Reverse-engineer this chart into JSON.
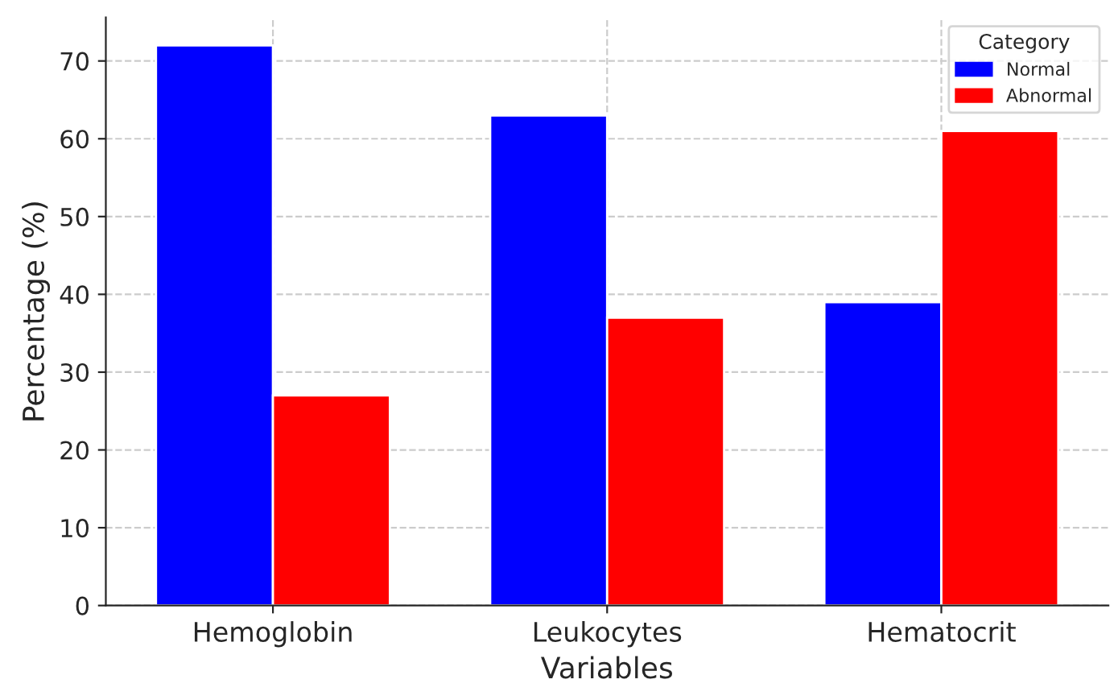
{
  "chart_data": {
    "type": "bar",
    "xlabel": "Variables",
    "ylabel": "Percentage (%)",
    "legend_title": "Category",
    "categories": [
      "Hemoglobin",
      "Leukocytes",
      "Hematocrit"
    ],
    "series": [
      {
        "name": "Normal",
        "color": "#0000ff",
        "values": [
          72,
          63,
          39
        ]
      },
      {
        "name": "Abnormal",
        "color": "#ff0000",
        "values": [
          27,
          37,
          61
        ]
      }
    ],
    "ylim": [
      0,
      75.6
    ],
    "yticks": [
      0,
      10,
      20,
      30,
      40,
      50,
      60,
      70
    ],
    "grid": true,
    "legend": "top right"
  }
}
